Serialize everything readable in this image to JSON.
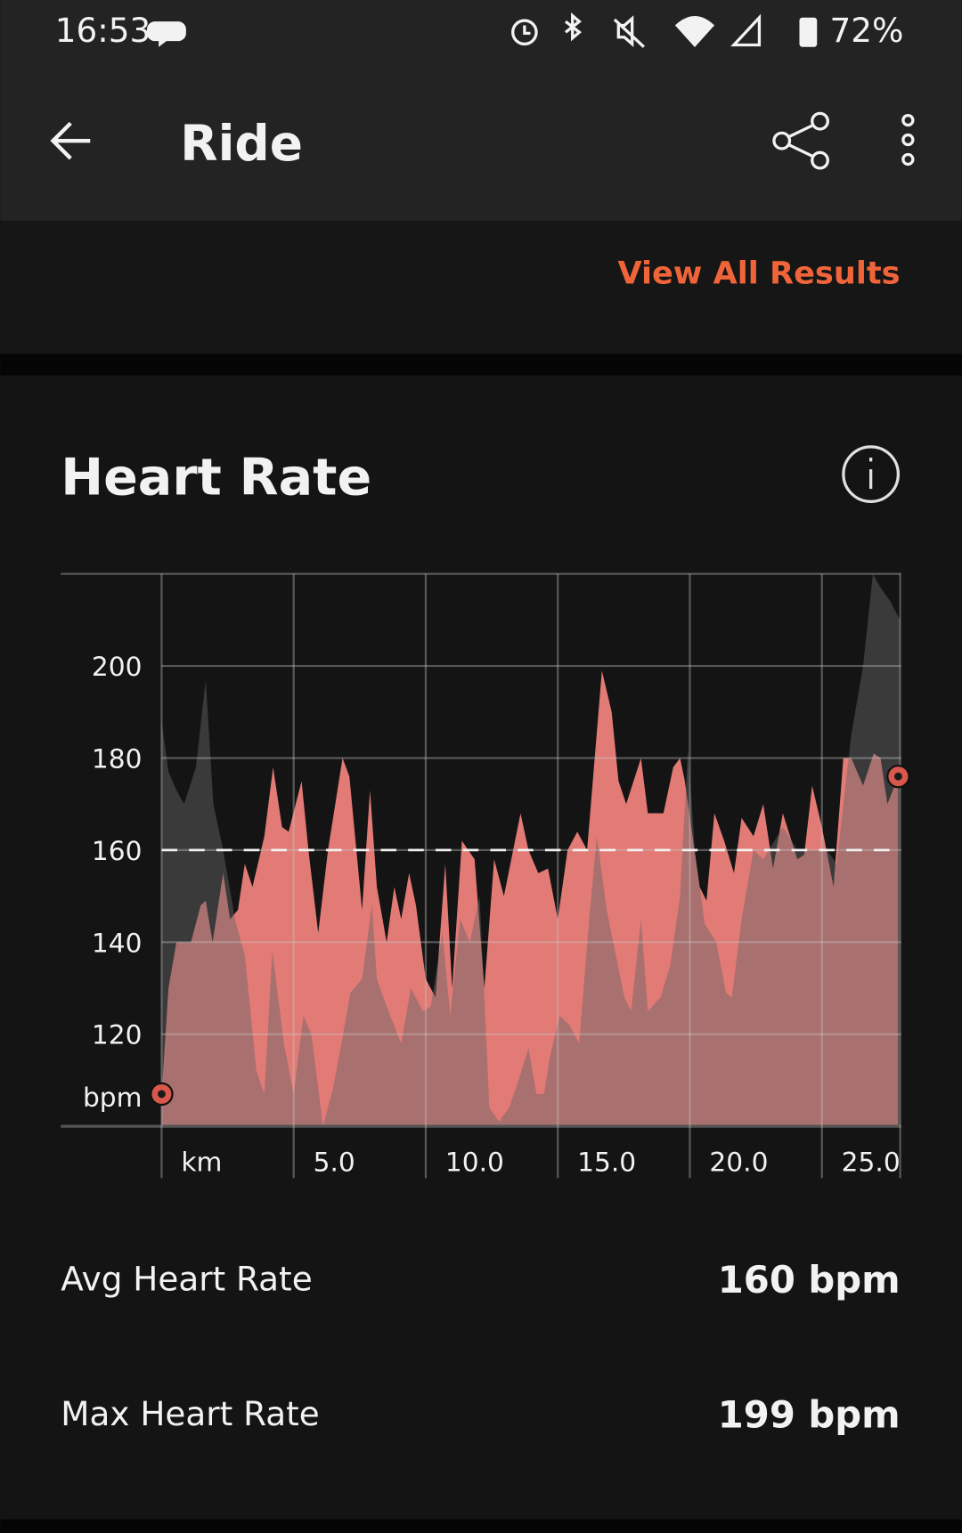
{
  "status_bar": {
    "time": "16:53",
    "battery": "72%"
  },
  "app_bar": {
    "title": "Ride"
  },
  "link": "View All Results",
  "chart_data": {
    "type": "area",
    "title": "Heart Rate",
    "y_label": "bpm",
    "xlim": [
      0,
      28
    ],
    "ylim": [
      100,
      220
    ],
    "xticks": [
      {
        "value": 0,
        "label": "km"
      },
      {
        "value": 5,
        "label": "5.0"
      },
      {
        "value": 10,
        "label": "10.0"
      },
      {
        "value": 15,
        "label": "15.0"
      },
      {
        "value": 20,
        "label": "20.0"
      },
      {
        "value": 25,
        "label": "25.0"
      }
    ],
    "yticks": [
      120,
      140,
      160,
      180,
      200
    ],
    "average": 160,
    "series": [
      {
        "color": "#e27a75",
        "x": [
          0,
          0.26,
          0.56,
          1.11,
          1.48,
          1.67,
          1.93,
          2.33,
          2.59,
          2.89,
          3.15,
          3.44,
          3.89,
          4.22,
          4.56,
          4.81,
          5.3,
          5.56,
          5.93,
          6.3,
          6.85,
          7.11,
          7.59,
          7.89,
          8.15,
          8.52,
          8.81,
          9.07,
          9.37,
          9.63,
          10,
          10.37,
          10.74,
          11,
          11.37,
          11.85,
          12.22,
          12.59,
          12.96,
          13.59,
          13.89,
          14.26,
          14.63,
          15,
          15.37,
          15.74,
          16.11,
          16.67,
          17.04,
          17.3,
          17.59,
          18.15,
          18.41,
          19,
          19.37,
          19.63,
          19.81,
          20.37,
          20.63,
          20.93,
          21.3,
          21.67,
          21.96,
          22.41,
          22.78,
          23.15,
          23.52,
          24.07,
          24.33,
          24.63,
          25,
          25.44,
          25.81,
          26.11,
          26.56,
          26.96,
          27.22,
          27.48,
          27.89
        ],
        "values": [
          107,
          130,
          140,
          140,
          148,
          149,
          140,
          155,
          145,
          147,
          157,
          152,
          163,
          178,
          165,
          164,
          175,
          160,
          142,
          160,
          180,
          176,
          147,
          173,
          152,
          140,
          152,
          145,
          155,
          148,
          132,
          128,
          157,
          130,
          162,
          158,
          130,
          158,
          150,
          168,
          160,
          155,
          156,
          145,
          160,
          164,
          160,
          199,
          190,
          175,
          170,
          180,
          168,
          168,
          178,
          180,
          175,
          152,
          149,
          168,
          162,
          155,
          167,
          163,
          170,
          156,
          168,
          158,
          159,
          174,
          165,
          152,
          180,
          180,
          174,
          181,
          180,
          170,
          176
        ]
      },
      {
        "color": "#676767",
        "opacity": 0.47,
        "x": [
          0,
          0.26,
          0.56,
          0.85,
          1.3,
          1.67,
          1.96,
          2.33,
          2.78,
          3.15,
          3.59,
          3.89,
          4.19,
          4.63,
          5,
          5.37,
          5.67,
          6.11,
          6.48,
          6.78,
          7.15,
          7.59,
          7.96,
          8.15,
          8.52,
          9.07,
          9.44,
          9.89,
          10.19,
          10.63,
          10.93,
          11.3,
          11.67,
          12.04,
          12.41,
          12.78,
          13.15,
          13.52,
          13.89,
          14.19,
          14.48,
          14.7,
          15.07,
          15.44,
          15.81,
          16.19,
          16.48,
          16.85,
          17.52,
          17.78,
          18.15,
          18.41,
          18.89,
          19.26,
          19.63,
          19.93,
          20.19,
          20.56,
          21,
          21.37,
          21.59,
          21.96,
          22.41,
          22.78,
          23.52,
          24.07,
          24.63,
          25.19,
          25.56,
          26.11,
          26.56,
          26.93,
          27.22,
          27.59,
          27.96
        ],
        "values": [
          188,
          177,
          173,
          170,
          178,
          197,
          170,
          160,
          145,
          137,
          112,
          107,
          138,
          118,
          107,
          124,
          120,
          100,
          108,
          117,
          129,
          132,
          148,
          132,
          126,
          118,
          130,
          125,
          126,
          142,
          124,
          145,
          140,
          150,
          104,
          101,
          104,
          110,
          117,
          107,
          107,
          115,
          124,
          122,
          118,
          145,
          163,
          147,
          128,
          125,
          145,
          125,
          128,
          135,
          150,
          182,
          160,
          144,
          140,
          129,
          128,
          145,
          160,
          158,
          165,
          160,
          160,
          160,
          157,
          185,
          200,
          220,
          217,
          214,
          210
        ]
      }
    ]
  },
  "stats": [
    {
      "label": "Avg Heart Rate",
      "value": "160 bpm"
    },
    {
      "label": "Max Heart Rate",
      "value": "199 bpm"
    }
  ]
}
